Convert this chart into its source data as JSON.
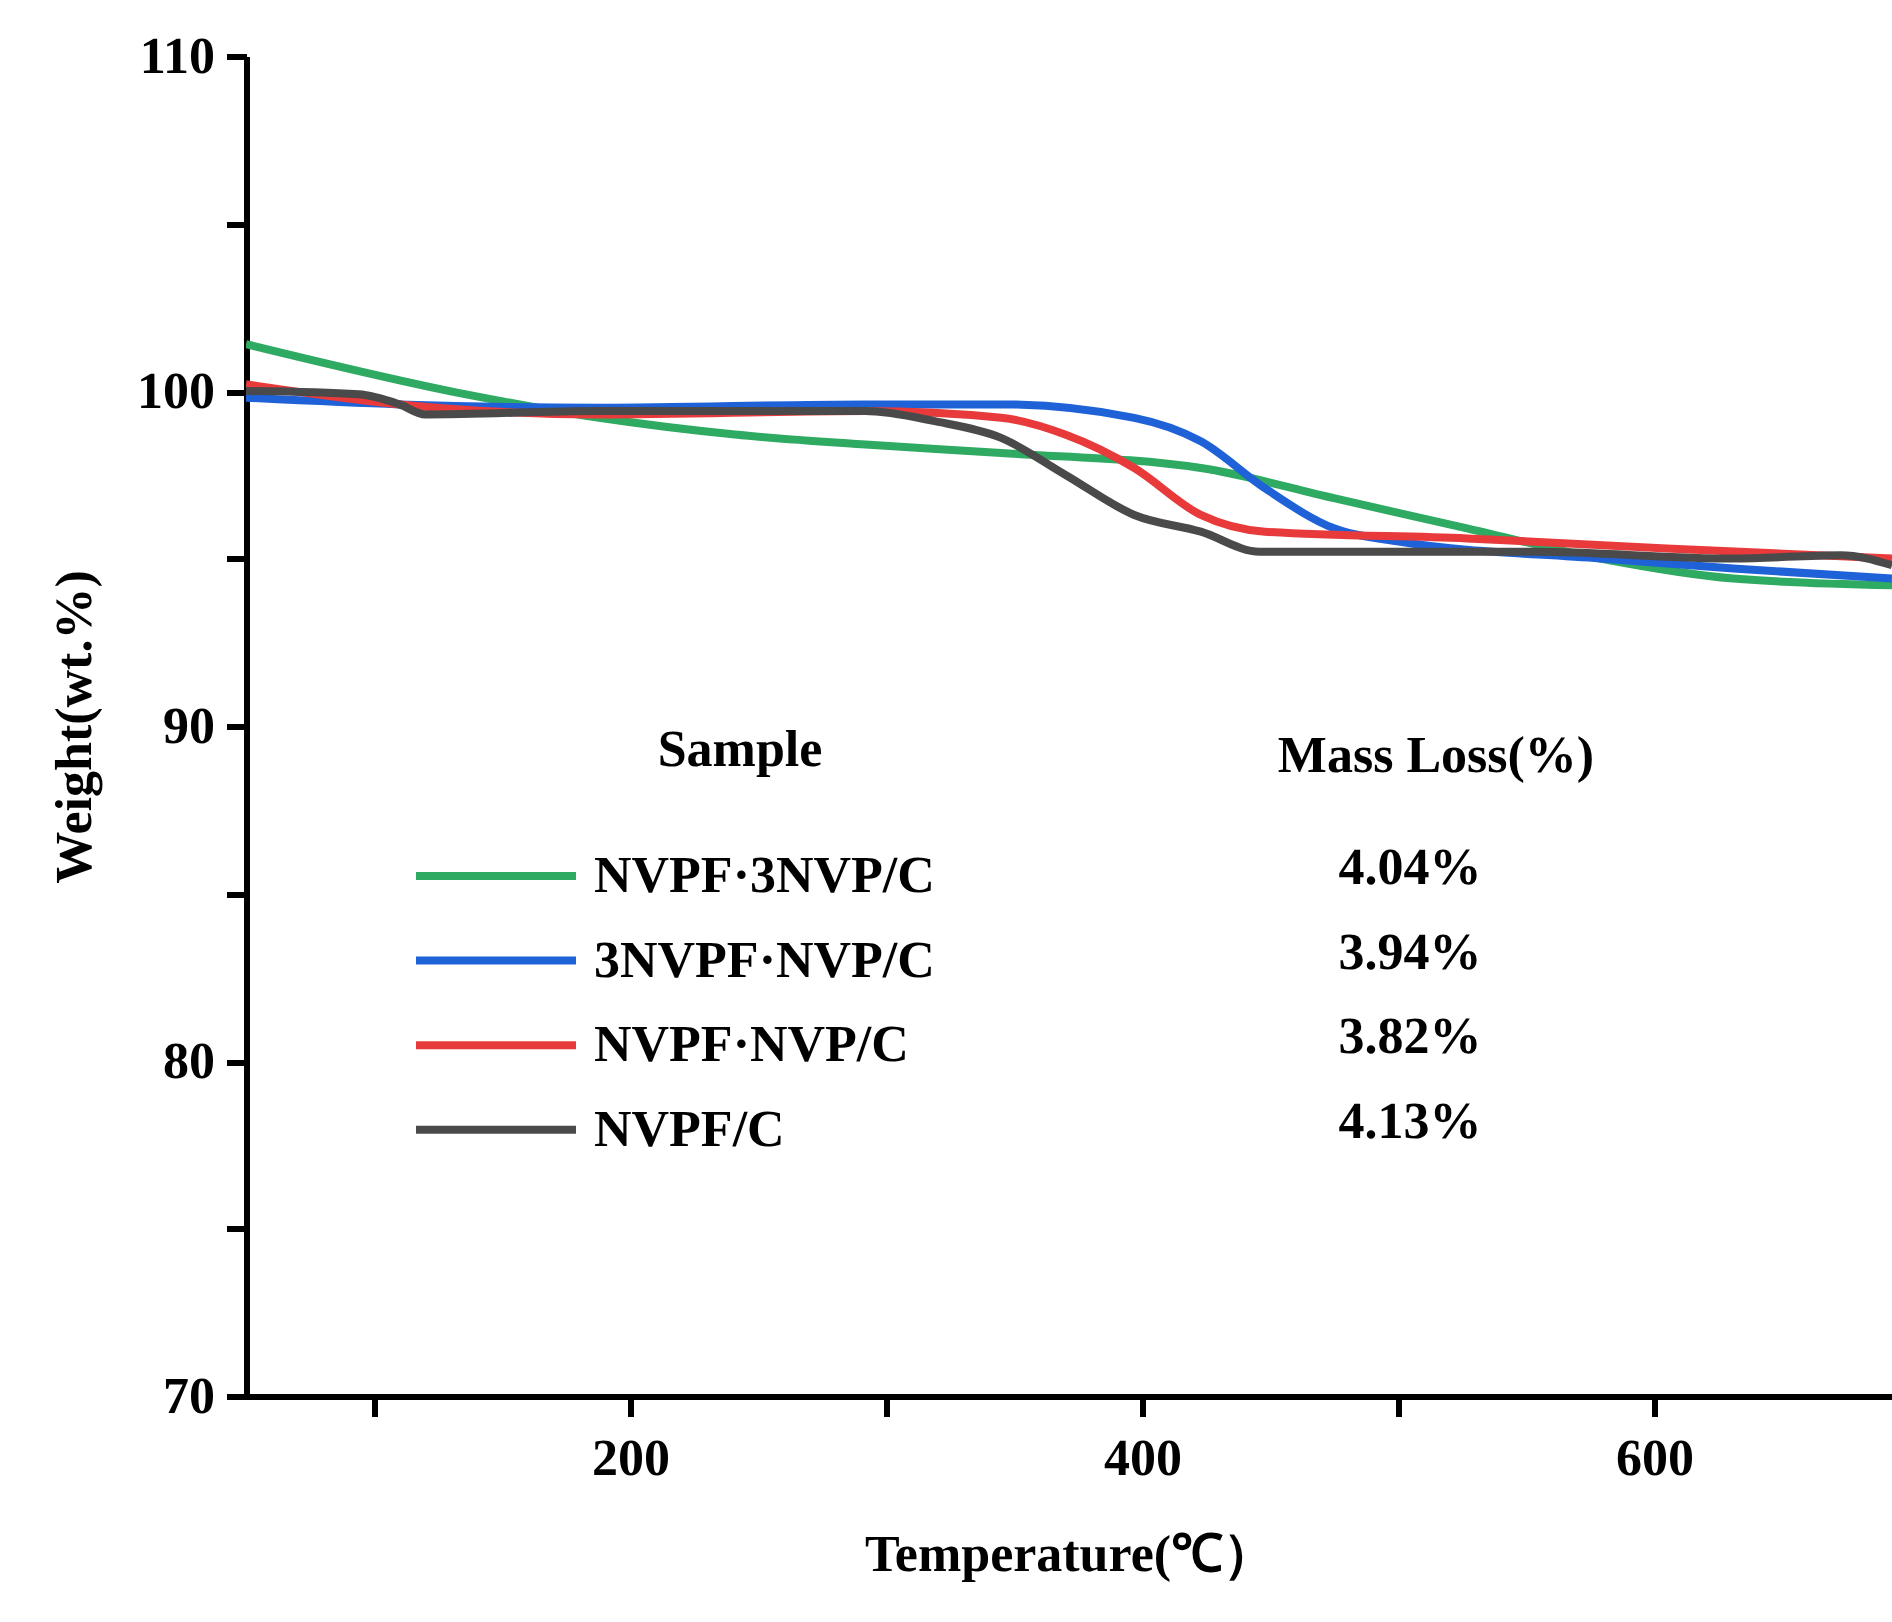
{
  "chart_data": {
    "type": "line",
    "xlabel": "Temperature(℃）",
    "ylabel": "Weight(wt.%)",
    "legend_title": "Sample",
    "legend": "bottom",
    "grid": false,
    "marker": "none",
    "line_style": "solid",
    "xlim": [
      50,
      693
    ],
    "ylim": [
      70,
      110
    ],
    "xticks": [
      {
        "value": 100,
        "label": null
      },
      200,
      {
        "value": 300,
        "label": null
      },
      400,
      {
        "value": 500,
        "label": null
      },
      600
    ],
    "yticks": [
      70,
      {
        "value": 75,
        "label": null
      },
      80,
      {
        "value": 85,
        "label": null
      },
      90,
      {
        "value": 95,
        "label": null
      },
      100,
      {
        "value": 105,
        "label": null
      },
      110
    ],
    "annotations": [
      "Mass Loss(%)",
      "4.04%",
      "3.94%",
      "3.82%",
      "4.13%"
    ],
    "series": [
      {
        "name": "NVPF·3NVP/C",
        "color": "#2eaa62",
        "x": [
          50,
          136,
          188,
          241,
          292,
          345,
          423,
          475,
          527,
          579,
          631,
          693
        ],
        "values": [
          101.4,
          99.9,
          99.2,
          98.7,
          98.4,
          98.15,
          97.7,
          96.8,
          95.9,
          95.0,
          94.4,
          94.2
        ]
      },
      {
        "name": "3NVPF·NVP/C",
        "color": "#1f62d8",
        "x": [
          50,
          110,
          188,
          292,
          345,
          397,
          423,
          448,
          475,
          501,
          579,
          631,
          693
        ],
        "values": [
          99.8,
          99.6,
          99.5,
          99.6,
          99.6,
          99.2,
          98.5,
          97.1,
          95.9,
          95.5,
          95.0,
          94.7,
          94.4
        ]
      },
      {
        "name": "NVPF·NVP/C",
        "color": "#e83a3a",
        "x": [
          50,
          110,
          188,
          292,
          345,
          370,
          397,
          423,
          448,
          527,
          605,
          693
        ],
        "values": [
          100.2,
          99.6,
          99.3,
          99.4,
          99.2,
          98.7,
          97.7,
          96.3,
          95.8,
          95.6,
          95.3,
          95.0
        ]
      },
      {
        "name": "NVPF/C",
        "color": "#4a4a4a",
        "x": [
          50,
          94,
          110,
          120,
          188,
          292,
          319,
          345,
          370,
          397,
          423,
          446,
          553,
          631,
          673,
          693
        ],
        "values": [
          100.0,
          99.9,
          99.6,
          99.3,
          99.4,
          99.4,
          99.1,
          98.6,
          97.5,
          96.3,
          95.8,
          95.2,
          95.2,
          95.0,
          95.1,
          94.8
        ]
      }
    ]
  }
}
